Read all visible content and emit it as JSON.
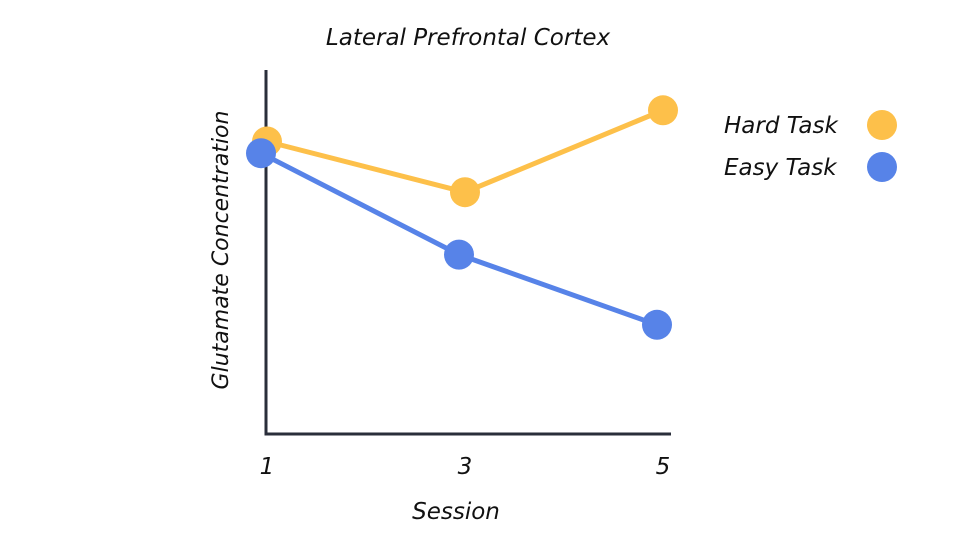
{
  "chart_data": {
    "type": "line",
    "title": "Lateral Prefrontal Cortex",
    "xlabel": "Session",
    "ylabel": "Glutamate Concentration",
    "x": [
      1,
      3,
      5
    ],
    "x_tick_labels": [
      "1",
      "3",
      "5"
    ],
    "ylim": [
      0,
      10
    ],
    "y_ticks_shown": false,
    "grid": false,
    "legend_position": "right",
    "series": [
      {
        "name": "Hard Task",
        "color": "#FDC04A",
        "values": [
          7.5,
          6.2,
          8.3
        ]
      },
      {
        "name": "Easy Task",
        "color": "#5783E8",
        "values": [
          7.2,
          4.6,
          2.8
        ]
      }
    ]
  },
  "colors": {
    "axis": "#2A2E3A",
    "background": "#FFFFFF"
  }
}
